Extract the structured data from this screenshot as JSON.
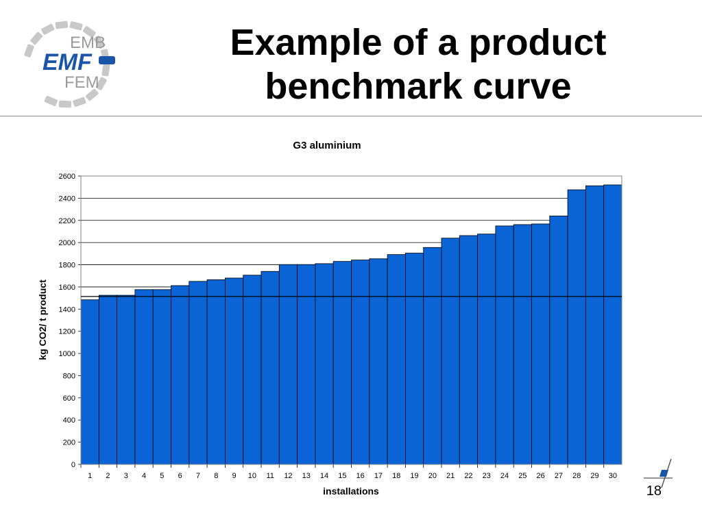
{
  "slide": {
    "title_line1": "Example of a product",
    "title_line2": "benchmark curve",
    "page_number": "18"
  },
  "logo": {
    "line_top": "EMB",
    "line_middle": "EMF",
    "line_bottom": "FEM",
    "brand_color": "#1a55a8",
    "ring_color": "#c8c8c8"
  },
  "chart_data": {
    "type": "bar",
    "title": "G3 aluminium",
    "xlabel": "installations",
    "ylabel": "kg CO2/ t product",
    "ylim": [
      0,
      2600
    ],
    "yticks": [
      0,
      200,
      400,
      600,
      800,
      1000,
      1200,
      1400,
      1600,
      1800,
      2000,
      2200,
      2400,
      2600
    ],
    "grid": true,
    "bar_color": "#0a64d6",
    "benchmark_line": 1514,
    "categories": [
      "1",
      "2",
      "3",
      "4",
      "5",
      "6",
      "7",
      "8",
      "9",
      "10",
      "11",
      "12",
      "13",
      "14",
      "15",
      "16",
      "17",
      "18",
      "19",
      "20",
      "21",
      "22",
      "23",
      "24",
      "25",
      "26",
      "27",
      "28",
      "29",
      "30"
    ],
    "values": [
      1484,
      1525,
      1525,
      1576,
      1576,
      1612,
      1650,
      1665,
      1680,
      1706,
      1740,
      1802,
      1802,
      1810,
      1830,
      1843,
      1854,
      1892,
      1905,
      1956,
      2040,
      2063,
      2077,
      2150,
      2162,
      2168,
      2240,
      2476,
      2512,
      2520
    ]
  }
}
